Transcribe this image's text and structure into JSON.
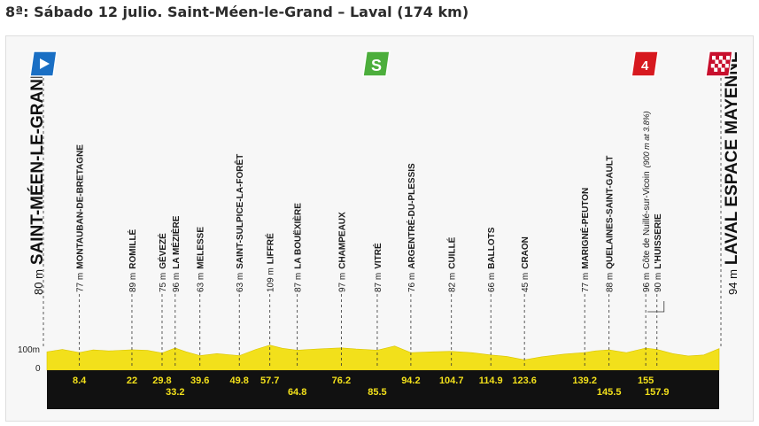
{
  "header": {
    "title": "8ª: Sábado 12 julio. Saint-Méen-le-Grand – Laval (174 km)"
  },
  "colors": {
    "terrain": "#f2e01b",
    "band": "#111111",
    "band_text": "#f2e01b",
    "start": "#1a6fc4",
    "sprint": "#4cae3c",
    "climb": "#d7191f",
    "finish": "#c8102e"
  },
  "icons": {
    "start": "start-flag-icon",
    "sprint": "sprint-icon",
    "climb": "climb-category-icon",
    "finish": "finish-flag-icon"
  },
  "chart_data": {
    "type": "area",
    "title": "8ª: Sábado 12 julio. Saint-Méen-le-Grand – Laval (174 km)",
    "xlabel": "",
    "ylabel": "",
    "xlim": [
      0,
      174
    ],
    "ylim": [
      0,
      100
    ],
    "y_ticks": [
      "100m",
      "0"
    ],
    "climb_category": "4",
    "start": {
      "km": 0,
      "alt_label": "80 m",
      "name": "SAINT-MÉEN-LE-GRAND"
    },
    "finish": {
      "km": 174,
      "alt_label": "94 m",
      "name": "LAVAL ESPACE MAYENNE"
    },
    "points": [
      {
        "km": 8.4,
        "alt": "77 m",
        "name": "MONTAUBAN-DE-BRETAGNE",
        "km_label": "8.4"
      },
      {
        "km": 22,
        "alt": "89 m",
        "name": "ROMILLÉ",
        "km_label": "22"
      },
      {
        "km": 29.8,
        "alt": "75 m",
        "name": "GÉVEZÉ",
        "km_label": "29.8"
      },
      {
        "km": 33.2,
        "alt": "96 m",
        "name": "LA MÉZIÈRE",
        "km_label": "33.2"
      },
      {
        "km": 39.6,
        "alt": "63 m",
        "name": "MELESSE",
        "km_label": "39.6"
      },
      {
        "km": 49.8,
        "alt": "63 m",
        "name": "SAINT-SULPICE-LA-FORÊT",
        "km_label": "49.8"
      },
      {
        "km": 57.7,
        "alt": "109 m",
        "name": "LIFFRÉ",
        "km_label": "57.7"
      },
      {
        "km": 64.8,
        "alt": "87 m",
        "name": "LA BOUËXIÈRE",
        "km_label": "64.8"
      },
      {
        "km": 76.2,
        "alt": "97 m",
        "name": "CHAMPEAUX",
        "km_label": "76.2"
      },
      {
        "km": 85.5,
        "alt": "87 m",
        "name": "VITRÉ",
        "km_label": "85.5"
      },
      {
        "km": 94.2,
        "alt": "76 m",
        "name": "ARGENTRÉ-DU-PLESSIS",
        "km_label": "94.2"
      },
      {
        "km": 104.7,
        "alt": "82 m",
        "name": "CUILLÉ",
        "km_label": "104.7"
      },
      {
        "km": 114.9,
        "alt": "66 m",
        "name": "BALLOTS",
        "km_label": "114.9"
      },
      {
        "km": 123.6,
        "alt": "45 m",
        "name": "CRAON",
        "km_label": "123.6"
      },
      {
        "km": 139.2,
        "alt": "77 m",
        "name": "MARIGNÉ-PEUTON",
        "km_label": "139.2"
      },
      {
        "km": 145.5,
        "alt": "88 m",
        "name": "QUELAINES-SAINT-GAULT",
        "km_label": "145.5"
      },
      {
        "km": 155,
        "alt": "96 m",
        "name": "Côte de Nuillé-sur-Vicoin",
        "note": "(900 m at 3.8%)",
        "km_label": "155"
      },
      {
        "km": 157.9,
        "alt": "90 m",
        "name": "L'HUISSERIE",
        "km_label": "157.9"
      }
    ],
    "sprint_km": 85.5,
    "climb_km": 155,
    "profile": {
      "km": [
        0,
        4,
        8.4,
        12,
        16,
        22,
        26,
        29.8,
        33.2,
        36,
        39.6,
        44,
        49.8,
        54,
        57.7,
        61,
        64.8,
        70,
        76.2,
        80,
        85.5,
        90,
        94.2,
        100,
        104.7,
        110,
        114.9,
        119,
        123.6,
        128,
        134,
        139.2,
        142,
        145.5,
        150,
        155,
        157.9,
        162,
        166,
        170,
        174
      ],
      "alt": [
        80,
        90,
        77,
        88,
        84,
        89,
        86,
        75,
        96,
        80,
        63,
        72,
        63,
        90,
        109,
        95,
        87,
        92,
        97,
        92,
        87,
        105,
        76,
        80,
        82,
        76,
        66,
        60,
        45,
        58,
        70,
        77,
        84,
        88,
        76,
        96,
        90,
        72,
        62,
        66,
        94
      ]
    }
  }
}
